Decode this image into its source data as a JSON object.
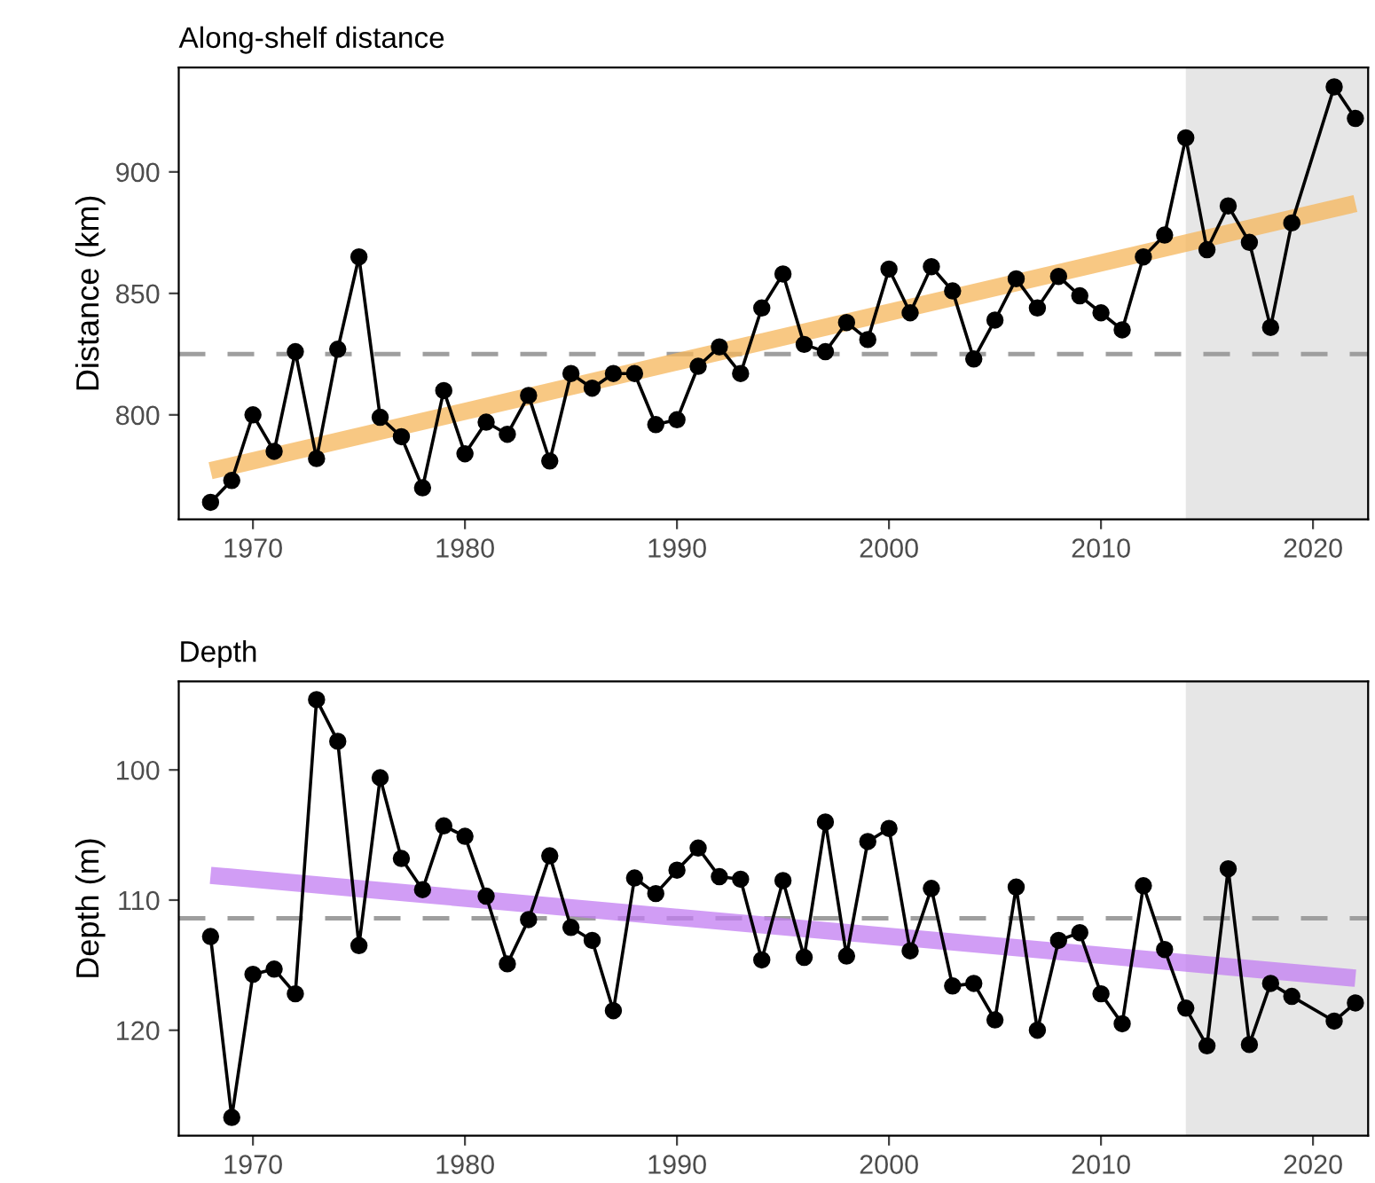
{
  "chart_data": [
    {
      "type": "line",
      "title": "Along-shelf distance",
      "ylabel": "Distance (km)",
      "xlim": [
        1966.5,
        2022.6
      ],
      "xticks": [
        1970,
        1980,
        1990,
        2000,
        2010,
        2020
      ],
      "ylim": [
        757,
        943
      ],
      "yticks": [
        800,
        850,
        900
      ],
      "grid": false,
      "legend": false,
      "series": [
        {
          "color": "#f6b55a",
          "x": [
            1968,
            2022
          ],
          "values": [
            777,
            887
          ]
        },
        {
          "color": "#000000",
          "marker": "circle",
          "line_style": "solid",
          "x": [
            1968,
            1969,
            1970,
            1971,
            1972,
            1973,
            1974,
            1975,
            1976,
            1977,
            1978,
            1979,
            1980,
            1981,
            1982,
            1983,
            1984,
            1985,
            1986,
            1987,
            1988,
            1989,
            1990,
            1991,
            1992,
            1993,
            1994,
            1995,
            1996,
            1997,
            1998,
            1999,
            2000,
            2001,
            2002,
            2003,
            2004,
            2005,
            2006,
            2007,
            2008,
            2009,
            2010,
            2011,
            2012,
            2013,
            2014,
            2015,
            2016,
            2017,
            2018,
            2019,
            2021,
            2022
          ],
          "values": [
            764,
            773,
            800,
            785,
            826,
            782,
            827,
            865,
            799,
            791,
            770,
            810,
            784,
            797,
            792,
            808,
            781,
            817,
            811,
            817,
            817,
            796,
            798,
            820,
            828,
            817,
            844,
            858,
            829,
            826,
            838,
            831,
            860,
            842,
            861,
            851,
            823,
            839,
            856,
            844,
            857,
            849,
            842,
            835,
            865,
            874,
            914,
            868,
            886,
            871,
            836,
            879,
            935,
            922
          ]
        }
      ],
      "ref_lines": [
        {
          "axis": "y",
          "value": 825,
          "color": "#9e9e9e",
          "line_style": "dashed"
        }
      ],
      "bands": [
        {
          "axis": "x",
          "from": 2014,
          "to": 2022.6,
          "color": "#e6e6e6"
        }
      ]
    },
    {
      "type": "line",
      "title": "Depth",
      "ylabel": "Depth (m)",
      "xlim": [
        1966.5,
        2022.6
      ],
      "xticks": [
        1970,
        1980,
        1990,
        2000,
        2010,
        2020
      ],
      "ylim": [
        128.1,
        93.2
      ],
      "yticks": [
        100,
        110,
        120
      ],
      "grid": false,
      "legend": false,
      "series": [
        {
          "color": "#c17cf2",
          "x": [
            1968,
            2022
          ],
          "values": [
            108.1,
            116.0
          ]
        },
        {
          "color": "#000000",
          "marker": "circle",
          "line_style": "solid",
          "x": [
            1968,
            1969,
            1970,
            1971,
            1972,
            1973,
            1974,
            1975,
            1976,
            1977,
            1978,
            1979,
            1980,
            1981,
            1982,
            1983,
            1984,
            1985,
            1986,
            1987,
            1988,
            1989,
            1990,
            1991,
            1992,
            1993,
            1994,
            1995,
            1996,
            1997,
            1998,
            1999,
            2000,
            2001,
            2002,
            2003,
            2004,
            2005,
            2006,
            2007,
            2008,
            2009,
            2010,
            2011,
            2012,
            2013,
            2014,
            2015,
            2016,
            2017,
            2018,
            2019,
            2021,
            2022
          ],
          "values": [
            112.8,
            126.7,
            115.7,
            115.3,
            117.2,
            94.6,
            97.8,
            113.5,
            100.6,
            106.8,
            109.2,
            104.3,
            105.1,
            109.7,
            114.9,
            111.5,
            106.6,
            112.1,
            113.1,
            118.5,
            108.3,
            109.5,
            107.7,
            106.0,
            108.2,
            108.4,
            114.6,
            108.5,
            114.4,
            104.0,
            114.3,
            105.5,
            104.5,
            113.9,
            109.1,
            116.6,
            116.4,
            119.2,
            109.0,
            120.0,
            113.1,
            112.5,
            117.2,
            119.5,
            108.9,
            113.8,
            118.3,
            121.2,
            107.6,
            121.1,
            116.4,
            117.4,
            119.3,
            117.9
          ]
        }
      ],
      "ref_lines": [
        {
          "axis": "y",
          "value": 111.4,
          "color": "#9e9e9e",
          "line_style": "dashed"
        }
      ],
      "bands": [
        {
          "axis": "x",
          "from": 2014,
          "to": 2022.6,
          "color": "#e6e6e6"
        }
      ]
    }
  ]
}
